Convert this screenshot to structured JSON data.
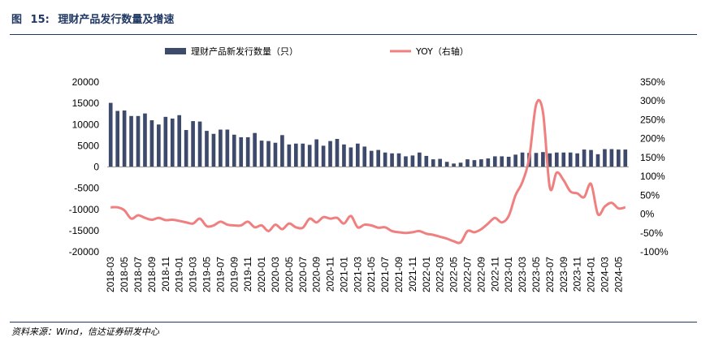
{
  "figure": {
    "label": "图",
    "number": "15:",
    "title": "理财产品发行数量及增速",
    "source": "资料来源：Wind，信达证券研发中心"
  },
  "chart_data": {
    "type": "bar",
    "categories": [
      "2018-03",
      "2018-04",
      "2018-05",
      "2018-06",
      "2018-07",
      "2018-08",
      "2018-09",
      "2018-10",
      "2018-11",
      "2018-12",
      "2019-01",
      "2019-02",
      "2019-03",
      "2019-04",
      "2019-05",
      "2019-06",
      "2019-07",
      "2019-08",
      "2019-09",
      "2019-10",
      "2019-11",
      "2019-12",
      "2020-01",
      "2020-02",
      "2020-03",
      "2020-04",
      "2020-05",
      "2020-06",
      "2020-07",
      "2020-08",
      "2020-09",
      "2020-10",
      "2020-11",
      "2020-12",
      "2021-01",
      "2021-02",
      "2021-03",
      "2021-04",
      "2021-05",
      "2021-06",
      "2021-07",
      "2021-08",
      "2021-09",
      "2021-10",
      "2021-11",
      "2021-12",
      "2022-01",
      "2022-02",
      "2022-03",
      "2022-04",
      "2022-05",
      "2022-06",
      "2022-07",
      "2022-08",
      "2022-09",
      "2022-10",
      "2022-11",
      "2022-12",
      "2023-01",
      "2023-02",
      "2023-03",
      "2023-04",
      "2023-05",
      "2023-06",
      "2023-07",
      "2023-08",
      "2023-09",
      "2023-10",
      "2023-11",
      "2023-12",
      "2024-01",
      "2024-02",
      "2024-03",
      "2024-04",
      "2024-05",
      "2024-06"
    ],
    "x_tick_labels": [
      "2018-03",
      "2018-05",
      "2018-07",
      "2018-09",
      "2018-11",
      "2019-01",
      "2019-03",
      "2019-05",
      "2019-07",
      "2019-09",
      "2019-11",
      "2020-01",
      "2020-03",
      "2020-05",
      "2020-07",
      "2020-09",
      "2020-11",
      "2021-01",
      "2021-03",
      "2021-05",
      "2021-07",
      "2021-09",
      "2021-11",
      "2022-01",
      "2022-03",
      "2022-05",
      "2022-07",
      "2022-09",
      "2022-11",
      "2023-01",
      "2023-03",
      "2023-05",
      "2023-07",
      "2023-09",
      "2023-11",
      "2024-01",
      "2024-03",
      "2024-05"
    ],
    "series": [
      {
        "name": "理财产品新发行数量（只）",
        "type": "bar",
        "axis": "left",
        "color": "#3d4a6b",
        "values": [
          15100,
          13200,
          13300,
          12000,
          12000,
          12600,
          11000,
          10000,
          11800,
          11400,
          12200,
          8700,
          10800,
          10700,
          8500,
          7800,
          8800,
          8800,
          7600,
          7000,
          7000,
          8000,
          6200,
          6100,
          5700,
          7500,
          5300,
          5500,
          5500,
          5200,
          6500,
          5000,
          6100,
          6600,
          5300,
          4600,
          5500,
          4800,
          3800,
          4000,
          3400,
          3200,
          3200,
          2500,
          2700,
          3400,
          2600,
          1800,
          1900,
          1200,
          800,
          1000,
          1800,
          1600,
          1800,
          2000,
          2500,
          2500,
          2400,
          2900,
          3400,
          3300,
          3300,
          3500,
          3200,
          3400,
          3400,
          3400,
          3200,
          4100,
          4000,
          3000,
          4200,
          4200,
          4100,
          4100
        ]
      },
      {
        "name": "YOY（右轴）",
        "type": "line",
        "axis": "right",
        "color": "#f07f7f",
        "values": [
          18,
          18,
          10,
          -12,
          -3,
          -10,
          -15,
          -10,
          -16,
          -15,
          -18,
          -22,
          -25,
          -12,
          -32,
          -30,
          -20,
          -28,
          -30,
          -30,
          -20,
          -35,
          -30,
          -45,
          -28,
          -40,
          -25,
          -35,
          -36,
          -12,
          -22,
          -8,
          -12,
          -10,
          -25,
          -5,
          -35,
          -28,
          -30,
          -36,
          -35,
          -45,
          -48,
          -50,
          -48,
          -45,
          -52,
          -55,
          -60,
          -65,
          -72,
          -75,
          -45,
          -48,
          -40,
          -25,
          -10,
          -22,
          -5,
          50,
          85,
          150,
          290,
          270,
          70,
          110,
          90,
          60,
          55,
          45,
          80,
          0,
          20,
          30,
          15,
          18
        ]
      }
    ],
    "y_left": {
      "min": -20000,
      "max": 20000,
      "step": 5000,
      "tick_labels": [
        "20000",
        "15000",
        "10000",
        "5000",
        "0",
        "-5000",
        "-10000",
        "-15000",
        "-20000"
      ]
    },
    "y_right": {
      "min": -100,
      "max": 350,
      "step": 50,
      "tick_labels": [
        "350%",
        "300%",
        "250%",
        "200%",
        "150%",
        "100%",
        "50%",
        "0%",
        "-50%",
        "-100%"
      ]
    },
    "legend_position": "top",
    "grid": false
  }
}
